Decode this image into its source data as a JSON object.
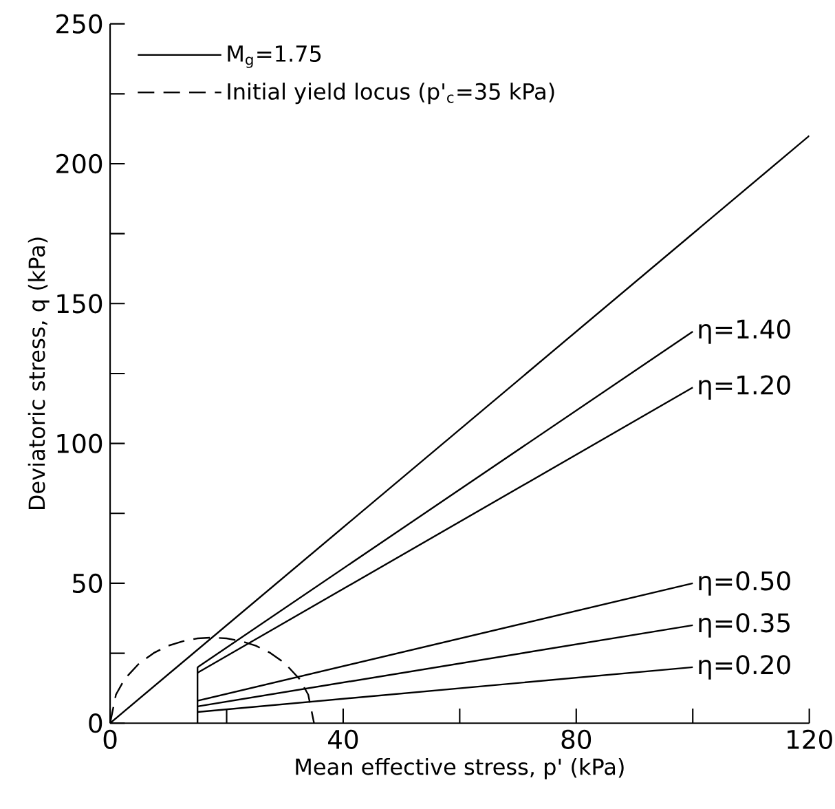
{
  "chart_data": {
    "type": "line",
    "xlabel": "Mean effective stress, p' (kPa)",
    "ylabel": "Deviatoric stress, q (kPa)",
    "xlim": [
      0,
      120
    ],
    "ylim": [
      0,
      250
    ],
    "xticks": [
      0,
      {
        "value": 20,
        "label": null
      },
      40,
      {
        "value": 60,
        "label": null
      },
      80,
      {
        "value": 100,
        "label": null
      },
      120
    ],
    "yticks": [
      0,
      {
        "value": 25,
        "label": null
      },
      50,
      {
        "value": 75,
        "label": null
      },
      100,
      {
        "value": 125,
        "label": null
      },
      150,
      {
        "value": 175,
        "label": null
      },
      200,
      {
        "value": 225,
        "label": null
      },
      250
    ],
    "legend": "top left",
    "grid": false,
    "marker": "none",
    "series": [
      {
        "name": "M$_{g}$=1.75",
        "color": "#000000",
        "line_style": "solid",
        "x": [
          0,
          120
        ],
        "values": [
          0,
          210
        ]
      },
      {
        "name": "Initial yield locus (p'$_{c}$=35 kPa)",
        "color": "#000000",
        "line_style": "dashed",
        "x": [
          0,
          1,
          2.5,
          5,
          7.5,
          10,
          12.5,
          15,
          17.5,
          20,
          22.5,
          25,
          27.5,
          30,
          32.5,
          34,
          35
        ],
        "values": [
          0,
          10.2,
          15.8,
          21.4,
          25.1,
          27.7,
          29.3,
          30.3,
          30.6,
          30.3,
          29.3,
          27.7,
          25.1,
          21.4,
          15.8,
          10.2,
          0
        ]
      },
      {
        "color": "#000000",
        "line_style": "solid",
        "x": [
          15,
          15
        ],
        "values": [
          0,
          20
        ]
      },
      {
        "name": "η=1.40",
        "color": "#000000",
        "line_style": "solid",
        "x": [
          15,
          100
        ],
        "values": [
          20,
          140
        ]
      },
      {
        "name": "η=1.20",
        "color": "#000000",
        "line_style": "solid",
        "x": [
          15,
          100
        ],
        "values": [
          18,
          120
        ]
      },
      {
        "name": "η=0.50",
        "color": "#000000",
        "line_style": "solid",
        "x": [
          15,
          100
        ],
        "values": [
          8,
          50
        ]
      },
      {
        "name": "η=0.35",
        "color": "#000000",
        "line_style": "solid",
        "x": [
          15,
          100
        ],
        "values": [
          6,
          35
        ]
      },
      {
        "name": "η=0.20",
        "color": "#000000",
        "line_style": "solid",
        "x": [
          15,
          100
        ],
        "values": [
          4,
          20
        ]
      }
    ]
  }
}
